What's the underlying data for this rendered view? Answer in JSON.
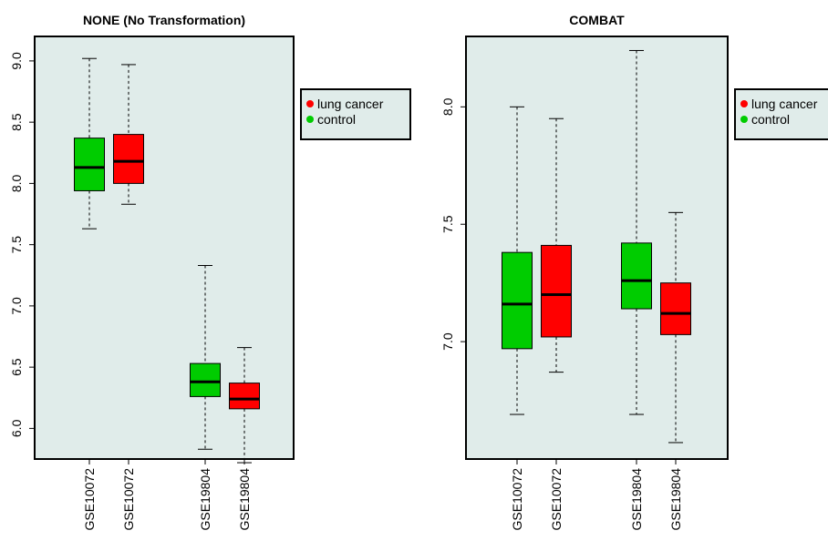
{
  "colors": {
    "panel_bg": "#e0ecea",
    "case": "#ff0000",
    "control": "#00cc00",
    "median": "#000000"
  },
  "chart_data": [
    {
      "type": "boxplot",
      "title": "NONE (No Transformation)",
      "xlabel": "",
      "ylabel": "",
      "ylim": [
        5.75,
        9.2
      ],
      "yticks": [
        "6.0",
        "6.5",
        "7.0",
        "7.5",
        "8.0",
        "8.5",
        "9.0"
      ],
      "grid": false,
      "legend_placement": "right, outside plot",
      "categories": [
        "GSE10072",
        "GSE10072",
        "GSE19804",
        "GSE19804"
      ],
      "boxes": [
        {
          "label": "GSE10072",
          "group": "control",
          "whisker_low": 7.63,
          "q1": 7.94,
          "median": 8.13,
          "q3": 8.37,
          "whisker_high": 9.02
        },
        {
          "label": "GSE10072",
          "group": "lung cancer",
          "whisker_low": 7.83,
          "q1": 8.0,
          "median": 8.18,
          "q3": 8.4,
          "whisker_high": 8.97
        },
        {
          "label": "GSE19804",
          "group": "control",
          "whisker_low": 5.83,
          "q1": 6.26,
          "median": 6.38,
          "q3": 6.53,
          "whisker_high": 7.33
        },
        {
          "label": "GSE19804",
          "group": "lung cancer",
          "whisker_low": 5.72,
          "q1": 6.16,
          "median": 6.24,
          "q3": 6.37,
          "whisker_high": 6.66
        }
      ],
      "legend": [
        {
          "label": "lung cancer",
          "group": "lung cancer"
        },
        {
          "label": "control",
          "group": "control"
        }
      ]
    },
    {
      "type": "boxplot",
      "title": "COMBAT",
      "xlabel": "",
      "ylabel": "",
      "ylim": [
        6.5,
        8.3
      ],
      "yticks": [
        "7.0",
        "7.5",
        "8.0"
      ],
      "grid": false,
      "legend_placement": "right, outside plot",
      "categories": [
        "GSE10072",
        "GSE10072",
        "GSE19804",
        "GSE19804"
      ],
      "boxes": [
        {
          "label": "GSE10072",
          "group": "control",
          "whisker_low": 6.69,
          "q1": 6.97,
          "median": 7.16,
          "q3": 7.38,
          "whisker_high": 8.0
        },
        {
          "label": "GSE10072",
          "group": "lung cancer",
          "whisker_low": 6.87,
          "q1": 7.02,
          "median": 7.2,
          "q3": 7.41,
          "whisker_high": 7.95
        },
        {
          "label": "GSE19804",
          "group": "control",
          "whisker_low": 6.69,
          "q1": 7.14,
          "median": 7.26,
          "q3": 7.42,
          "whisker_high": 8.24
        },
        {
          "label": "GSE19804",
          "group": "lung cancer",
          "whisker_low": 6.57,
          "q1": 7.03,
          "median": 7.12,
          "q3": 7.25,
          "whisker_high": 7.55
        }
      ],
      "legend": [
        {
          "label": "lung cancer",
          "group": "lung cancer"
        },
        {
          "label": "control",
          "group": "control"
        }
      ]
    }
  ]
}
